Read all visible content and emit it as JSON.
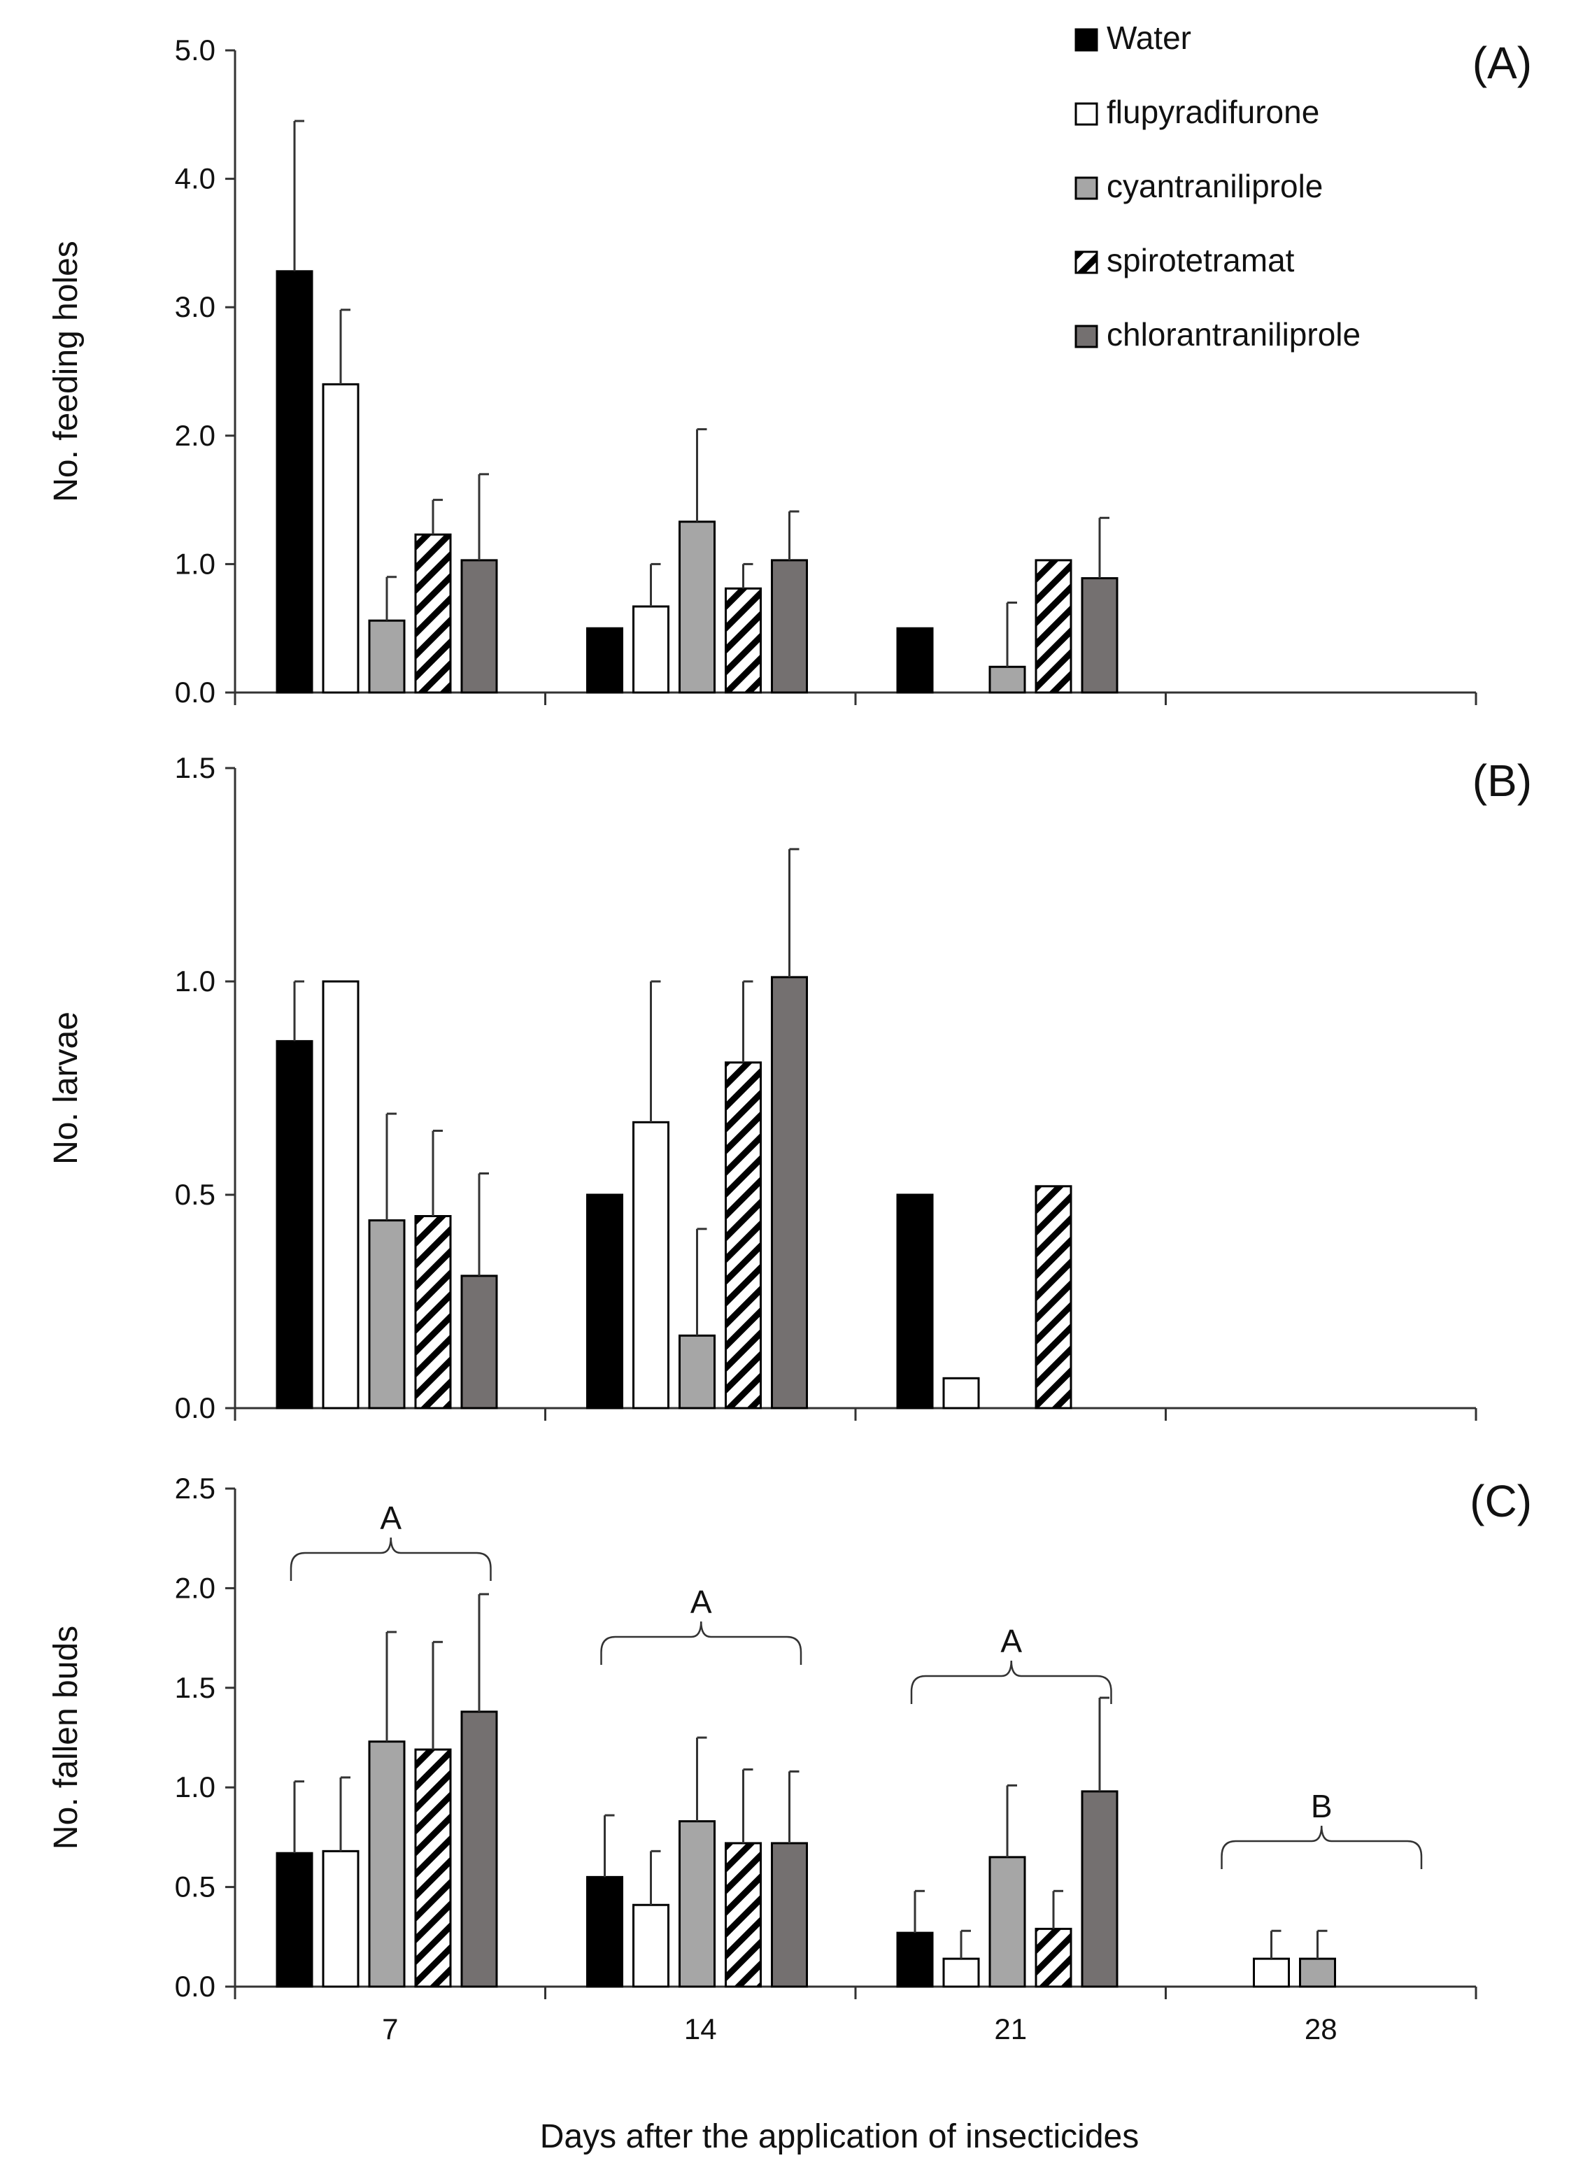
{
  "figure": {
    "xlabel": "Days after the application of insecticides",
    "categories": [
      "7",
      "14",
      "21",
      "28"
    ]
  },
  "legend": [
    {
      "name": "Water",
      "fill": "#000000",
      "pattern": "solid"
    },
    {
      "name": "flupyradifurone",
      "fill": "#ffffff",
      "pattern": "solid"
    },
    {
      "name": "cyantraniliprole",
      "fill": "#a6a6a6",
      "pattern": "solid"
    },
    {
      "name": "spirotetramat",
      "fill": "#ffffff",
      "pattern": "hatch"
    },
    {
      "name": "chlorantraniliprole",
      "fill": "#747070",
      "pattern": "solid"
    }
  ],
  "chart_data": [
    {
      "type": "bar",
      "panel": "(A)",
      "ylabel": "No. feeding holes",
      "ylim": [
        0,
        5
      ],
      "yticks": [
        "0.0",
        "1.0",
        "2.0",
        "3.0",
        "4.0",
        "5.0"
      ],
      "categories": [
        "7",
        "14",
        "21",
        "28"
      ],
      "show_category_labels": false,
      "series": [
        {
          "name": "Water",
          "values": [
            3.28,
            0.5,
            0.5,
            0
          ],
          "errors": [
            1.17,
            0,
            0,
            0
          ]
        },
        {
          "name": "flupyradifurone",
          "values": [
            2.4,
            0.67,
            0,
            0
          ],
          "errors": [
            0.58,
            0.33,
            0,
            0
          ]
        },
        {
          "name": "cyantraniliprole",
          "values": [
            0.56,
            1.33,
            0.2,
            0
          ],
          "errors": [
            0.34,
            0.72,
            0.5,
            0
          ]
        },
        {
          "name": "spirotetramat",
          "values": [
            1.23,
            0.81,
            1.03,
            0
          ],
          "errors": [
            0.27,
            0.19,
            0,
            0
          ]
        },
        {
          "name": "chlorantraniliprole",
          "values": [
            1.03,
            1.03,
            0.89,
            0
          ],
          "errors": [
            0.67,
            0.38,
            0.47,
            0
          ]
        }
      ]
    },
    {
      "type": "bar",
      "panel": "(B)",
      "ylabel": "No. larvae",
      "ylim": [
        0,
        1.5
      ],
      "yticks": [
        "0.0",
        "0.5",
        "1.0",
        "1.5"
      ],
      "categories": [
        "7",
        "14",
        "21",
        "28"
      ],
      "show_category_labels": false,
      "series": [
        {
          "name": "Water",
          "values": [
            0.86,
            0.5,
            0.5,
            0
          ],
          "errors": [
            0.14,
            0,
            0,
            0
          ]
        },
        {
          "name": "flupyradifurone",
          "values": [
            1.0,
            0.67,
            0.07,
            0
          ],
          "errors": [
            0,
            0.33,
            0,
            0
          ]
        },
        {
          "name": "cyantraniliprole",
          "values": [
            0.44,
            0.17,
            0,
            0
          ],
          "errors": [
            0.25,
            0.25,
            0,
            0
          ]
        },
        {
          "name": "spirotetramat",
          "values": [
            0.45,
            0.81,
            0.52,
            0
          ],
          "errors": [
            0.2,
            0.19,
            0,
            0
          ]
        },
        {
          "name": "chlorantraniliprole",
          "values": [
            0.31,
            1.01,
            0,
            0
          ],
          "errors": [
            0.24,
            0.3,
            0,
            0
          ]
        }
      ]
    },
    {
      "type": "bar",
      "panel": "(C)",
      "ylabel": "No. fallen buds",
      "ylim": [
        0,
        2.5
      ],
      "yticks": [
        "0.0",
        "0.5",
        "1.0",
        "1.5",
        "2.0",
        "2.5"
      ],
      "categories": [
        "7",
        "14",
        "21",
        "28"
      ],
      "show_category_labels": true,
      "series": [
        {
          "name": "Water",
          "values": [
            0.67,
            0.55,
            0.27,
            0
          ],
          "errors": [
            0.36,
            0.31,
            0.21,
            0
          ]
        },
        {
          "name": "flupyradifurone",
          "values": [
            0.68,
            0.41,
            0.14,
            0.14
          ],
          "errors": [
            0.37,
            0.27,
            0.14,
            0.14
          ]
        },
        {
          "name": "cyantraniliprole",
          "values": [
            1.23,
            0.83,
            0.65,
            0.14
          ],
          "errors": [
            0.55,
            0.42,
            0.36,
            0.14
          ]
        },
        {
          "name": "spirotetramat",
          "values": [
            1.19,
            0.72,
            0.29,
            0
          ],
          "errors": [
            0.54,
            0.37,
            0.19,
            0
          ]
        },
        {
          "name": "chlorantraniliprole",
          "values": [
            1.38,
            0.72,
            0.98,
            0
          ],
          "errors": [
            0.59,
            0.36,
            0.47,
            0
          ]
        }
      ],
      "group_letters": [
        "A",
        "A",
        "A",
        "B"
      ]
    }
  ]
}
